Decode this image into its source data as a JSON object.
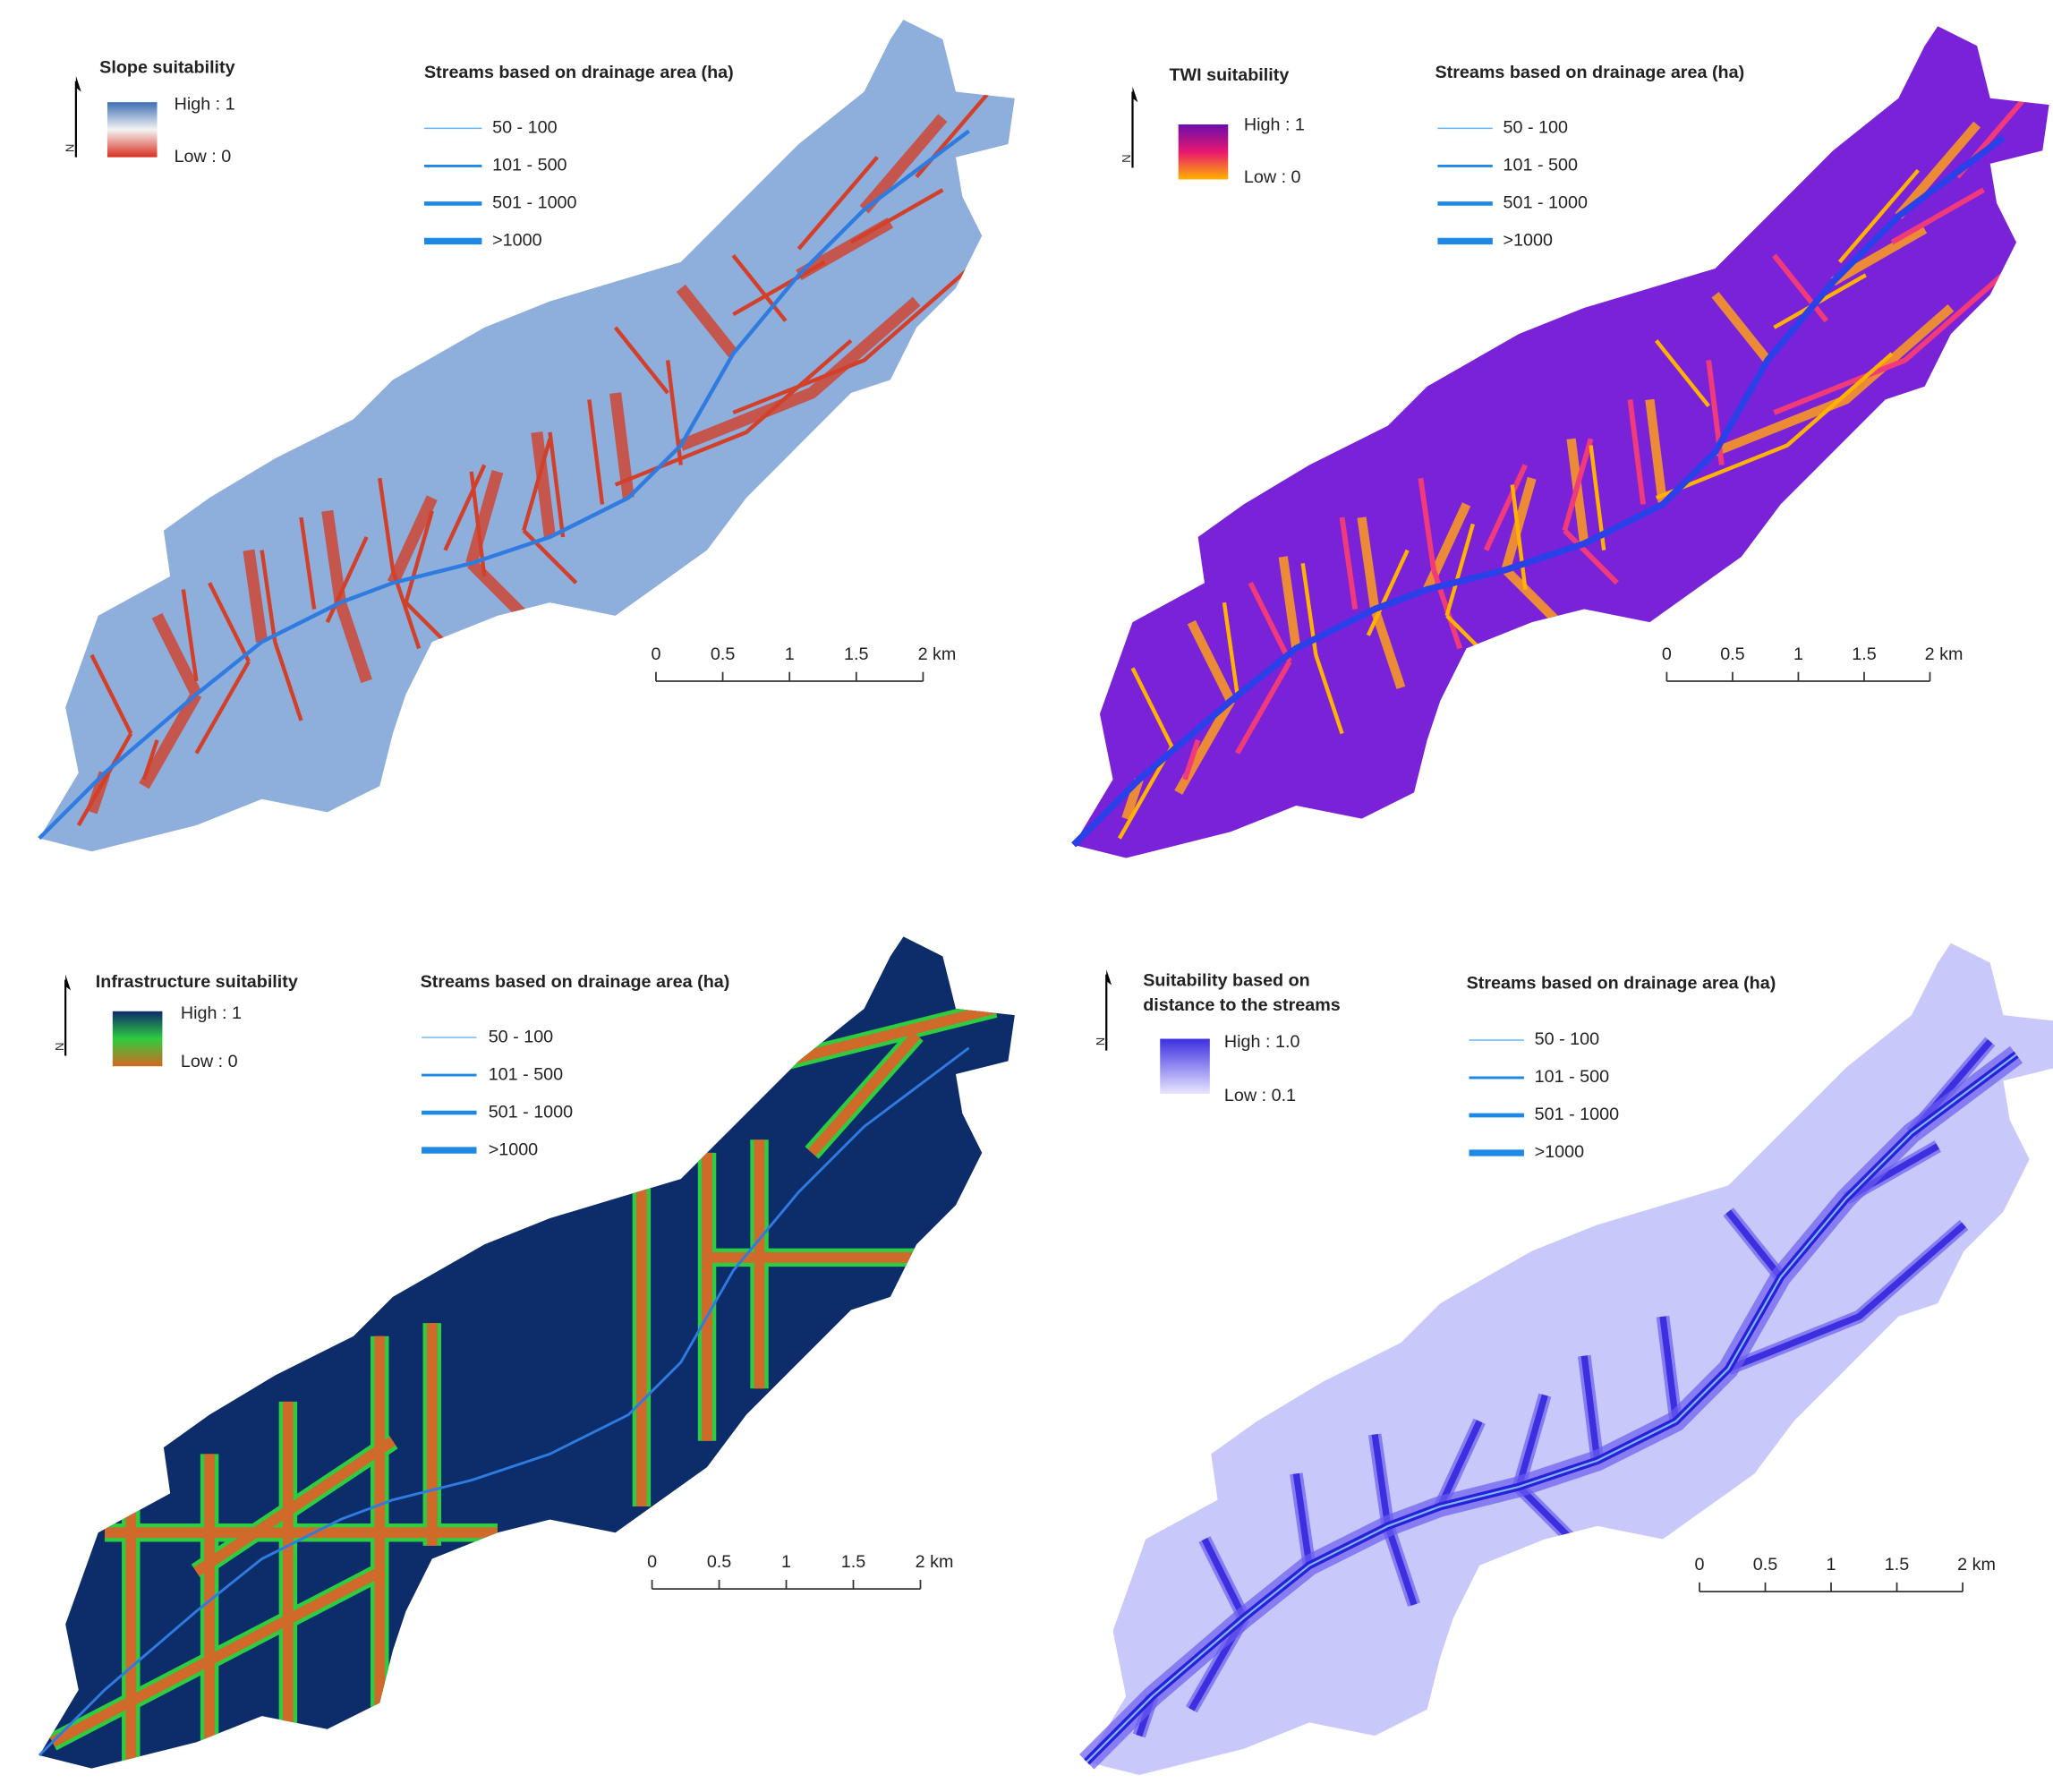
{
  "panels": [
    {
      "legend": {
        "title": [
          "Slope suitability"
        ],
        "high": "High : 1",
        "low": "Low : 0"
      },
      "north": "N",
      "streams": {
        "title": "Streams based on drainage area (ha)",
        "classes": [
          "50 - 100",
          "101 - 500",
          "501 - 1000",
          ">1000"
        ]
      },
      "scale": [
        "0",
        "0.5",
        "1",
        "1.5",
        "2 km"
      ]
    },
    {
      "legend": {
        "title": [
          "TWI suitability"
        ],
        "high": "High : 1",
        "low": "Low : 0"
      },
      "north": "N",
      "streams": {
        "title": "Streams based on drainage area (ha)",
        "classes": [
          "50 - 100",
          "101 - 500",
          "501 - 1000",
          ">1000"
        ]
      },
      "scale": [
        "0",
        "0.5",
        "1",
        "1.5",
        "2 km"
      ]
    },
    {
      "legend": {
        "title": [
          "Infrastructure suitability"
        ],
        "high": "High : 1",
        "low": "Low : 0"
      },
      "north": "N",
      "streams": {
        "title": "Streams based on drainage area (ha)",
        "classes": [
          "50 - 100",
          "101 - 500",
          "501 - 1000",
          ">1000"
        ]
      },
      "scale": [
        "0",
        "0.5",
        "1",
        "1.5",
        "2 km"
      ]
    },
    {
      "legend": {
        "title": [
          "Suitability based on",
          "distance to the streams"
        ],
        "high": "High : 1.0",
        "low": "Low : 0.1"
      },
      "north": "N",
      "streams": {
        "title": "Streams based on drainage area (ha)",
        "classes": [
          "50 - 100",
          "101 - 500",
          "501 - 1000",
          ">1000"
        ]
      },
      "scale": [
        "0",
        "0.5",
        "1",
        "1.5",
        "2 km"
      ]
    }
  ]
}
